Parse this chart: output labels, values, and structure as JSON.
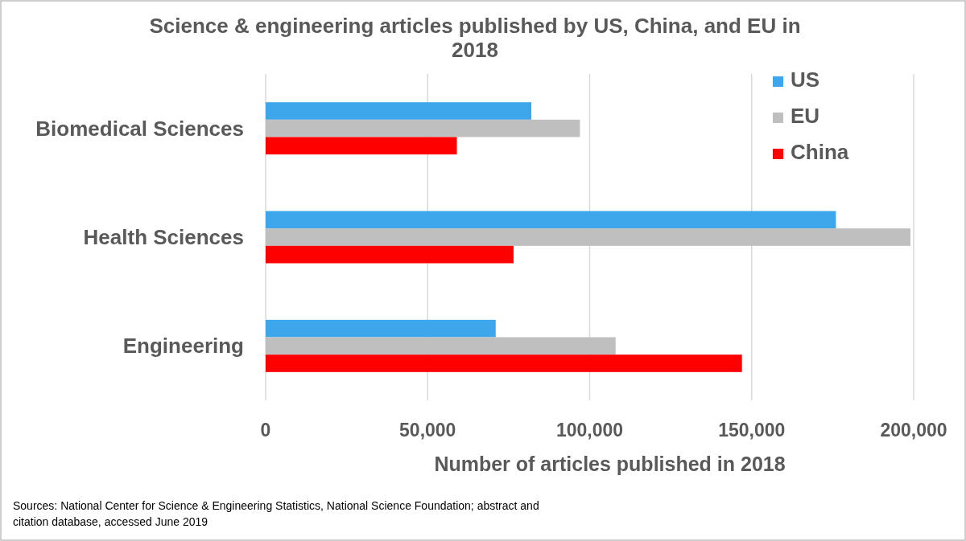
{
  "chart_data": {
    "type": "bar",
    "orientation": "horizontal",
    "title": "Science & engineering articles published by US, China, and EU in 2018",
    "xlabel": "Number of articles published in 2018",
    "categories": [
      "Biomedical Sciences",
      "Health Sciences",
      "Engineering"
    ],
    "series": [
      {
        "name": "US",
        "color": "#3ea6ea",
        "values": [
          82000,
          176000,
          71000
        ]
      },
      {
        "name": "EU",
        "color": "#bfbfbf",
        "values": [
          97000,
          199000,
          108000
        ]
      },
      {
        "name": "China",
        "color": "#ff0000",
        "values": [
          59000,
          76500,
          147000
        ]
      }
    ],
    "xlim": [
      0,
      200000
    ],
    "xticks": [
      {
        "value": 0,
        "label": "0"
      },
      {
        "value": 50000,
        "label": "50,000"
      },
      {
        "value": 100000,
        "label": "100,000"
      },
      {
        "value": 150000,
        "label": "150,000"
      },
      {
        "value": 200000,
        "label": "200,000"
      }
    ],
    "grid": "x",
    "legend": "top right",
    "annotations": [
      "Sources: National Center for Science & Engineering Statistics, National Science Foundation; abstract and citation database, accessed June 2019"
    ]
  }
}
